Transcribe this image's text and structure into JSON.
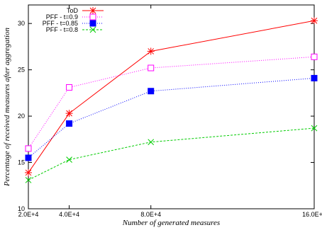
{
  "chart_data": {
    "type": "line",
    "xlabel": "Number of generated measures",
    "ylabel": "Percentage of received measures after aggregation",
    "x_tick_labels": [
      "2.0E+4",
      "4.0E+4",
      "8.0E+4",
      "16.0E+4"
    ],
    "x": [
      20000,
      40000,
      80000,
      160000
    ],
    "xlim": [
      20000,
      160000
    ],
    "ylim": [
      10,
      32
    ],
    "y_ticks": [
      10,
      15,
      20,
      25,
      30
    ],
    "legend_position": "top-left",
    "grid": false,
    "series": [
      {
        "name": "ToD",
        "color": "#ff0000",
        "marker": "star",
        "dash": "",
        "values": [
          13.9,
          20.3,
          27.0,
          30.3
        ]
      },
      {
        "name": "PFF - t=0.9",
        "color": "#ff00ff",
        "marker": "open-square",
        "dash": "1,2",
        "values": [
          16.5,
          23.1,
          25.2,
          26.4
        ]
      },
      {
        "name": "PFF - t=0.85",
        "color": "#0000ff",
        "marker": "filled-square",
        "dash": "1,2",
        "values": [
          15.5,
          19.2,
          22.7,
          24.1
        ]
      },
      {
        "name": "PFF - t=0.8",
        "color": "#00cc00",
        "marker": "x",
        "dash": "3,2",
        "values": [
          13.1,
          15.3,
          17.2,
          18.7
        ]
      }
    ]
  }
}
